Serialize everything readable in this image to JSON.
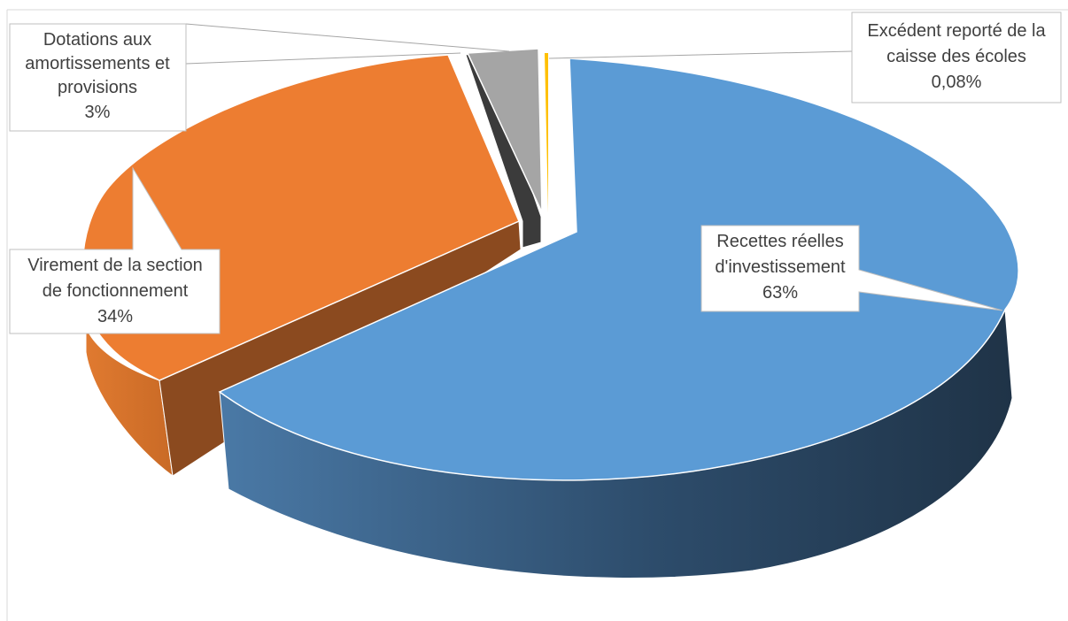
{
  "chart_data": {
    "type": "pie",
    "style": "3d-exploded",
    "slices": [
      {
        "name": "Recettes réelles d'investissement",
        "percent": 63,
        "percent_label": "63%",
        "color": "#5b9bd5",
        "side_color": "#2e4a66"
      },
      {
        "name": "Virement de la section de fonctionnement",
        "percent": 34,
        "percent_label": "34%",
        "color": "#ed7d31",
        "side_color": "#8f4a1e"
      },
      {
        "name": "Dotations aux amortissements et provisions",
        "percent": 3,
        "percent_label": "3%",
        "color": "#a5a5a5",
        "side_color": "#3a3a3a"
      },
      {
        "name": "Excédent reporté de la caisse des écoles",
        "percent": 0.08,
        "percent_label": "0,08%",
        "color": "#ffc000",
        "side_color": "#8a6a00"
      }
    ]
  },
  "labels": {
    "recettes": {
      "line1": "Recettes réelles",
      "line2": "d'investissement",
      "pct": "63%"
    },
    "virement": {
      "line1": "Virement de la section",
      "line2": "de fonctionnement",
      "pct": "34%"
    },
    "dotations": {
      "line1": "Dotations aux",
      "line2": "amortissements et",
      "line3": "provisions",
      "pct": "3%"
    },
    "excedent": {
      "line1": "Excédent reporté de la",
      "line2": "caisse des écoles",
      "pct": "0,08%"
    }
  }
}
